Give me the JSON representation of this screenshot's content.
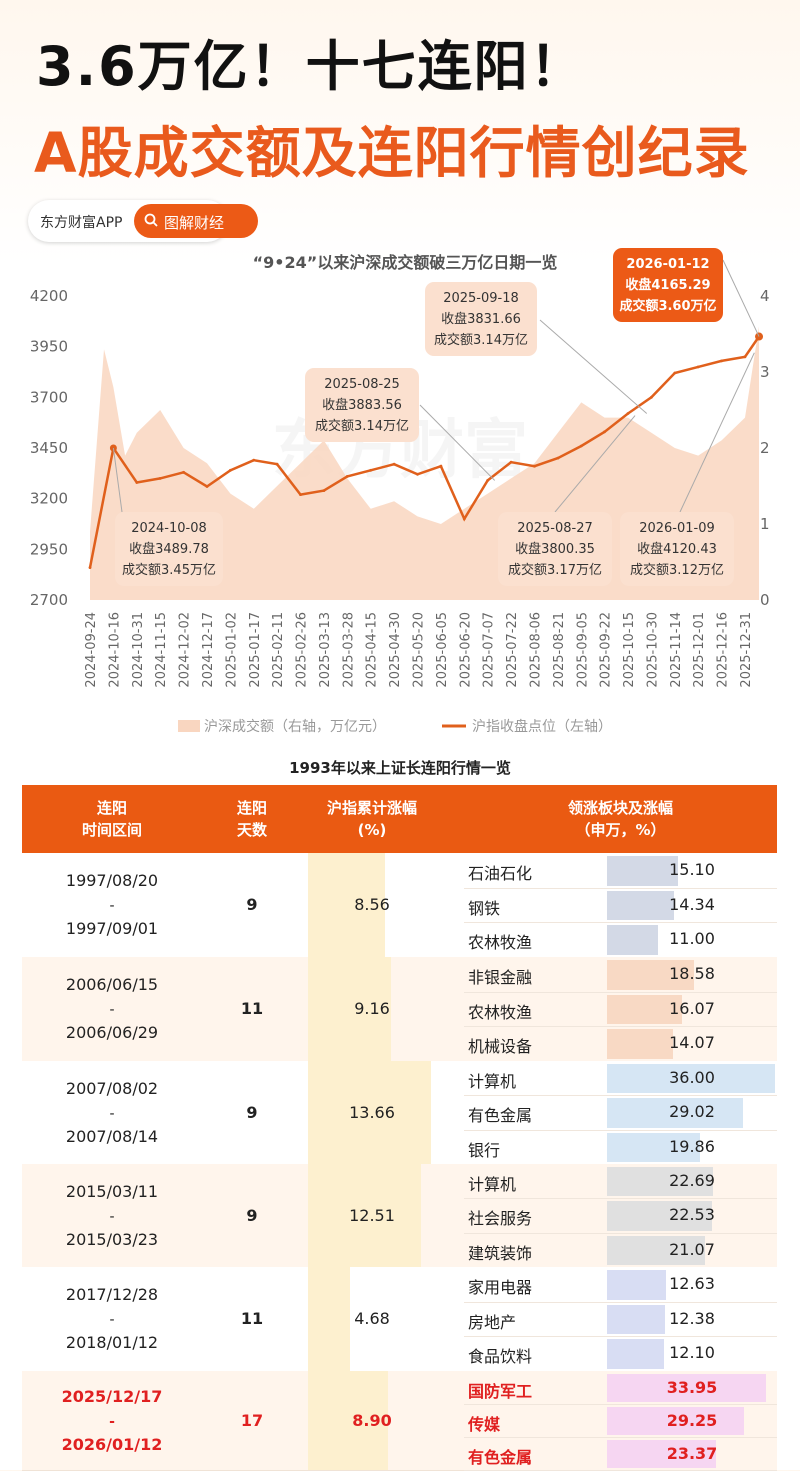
{
  "headline": "3.6万亿！十七连阳！",
  "subheadline": "A股成交额及连阳行情创纪录",
  "brand": {
    "app": "东方财富APP",
    "tag": "图解财经"
  },
  "watermark": "东方财富",
  "colors": {
    "accent": "#ec5a16",
    "area": "#f9d6c0",
    "line": "#e0601c"
  },
  "chart_data": {
    "type": "line",
    "title": "“9•24”以来沪深成交额破三万亿日期一览",
    "x_ticks": [
      "2024-09-24",
      "2024-10-16",
      "2024-10-31",
      "2024-11-15",
      "2024-12-02",
      "2024-12-17",
      "2025-01-02",
      "2025-01-17",
      "2025-02-11",
      "2025-02-26",
      "2025-03-13",
      "2025-03-28",
      "2025-04-15",
      "2025-04-30",
      "2025-05-20",
      "2025-06-05",
      "2025-06-20",
      "2025-07-07",
      "2025-07-22",
      "2025-08-06",
      "2025-08-21",
      "2025-09-05",
      "2025-09-22",
      "2025-10-15",
      "2025-10-30",
      "2025-11-14",
      "2025-12-01",
      "2025-12-16",
      "2025-12-31"
    ],
    "y_left_ticks": [
      "4200",
      "3950",
      "3700",
      "3450",
      "3200",
      "2950",
      "2700"
    ],
    "y_left_range": [
      2700,
      4200
    ],
    "y_right_ticks": [
      "4",
      "3",
      "2",
      "1",
      "0"
    ],
    "y_right_range": [
      0,
      4
    ],
    "legend": {
      "area": "沪深成交额（右轴，万亿元）",
      "line": "沪指收盘点位（左轴）"
    },
    "series": [
      {
        "name": "沪指收盘点位（左轴）",
        "axis": "left",
        "x": [
          0,
          1,
          2,
          3,
          4,
          5,
          6,
          7,
          8,
          9,
          10,
          11,
          12,
          13,
          14,
          15,
          16,
          17,
          18,
          19,
          20,
          21,
          22,
          23,
          24,
          25,
          26,
          27,
          28,
          28.6
        ],
        "values": [
          2860,
          3450,
          3280,
          3300,
          3330,
          3260,
          3340,
          3390,
          3370,
          3220,
          3240,
          3310,
          3340,
          3370,
          3320,
          3360,
          3100,
          3290,
          3380,
          3360,
          3400,
          3460,
          3530,
          3620,
          3700,
          3820,
          3850,
          3880,
          3900,
          4000
        ]
      },
      {
        "name": "沪深成交额（右轴，万亿元）",
        "axis": "right",
        "x": [
          0,
          0.6,
          1,
          1.5,
          2,
          3,
          4,
          5,
          6,
          7,
          8,
          9,
          10,
          11,
          12,
          13,
          14,
          15,
          16,
          17,
          18,
          19,
          20,
          21,
          22,
          23,
          24,
          25,
          26,
          27,
          28,
          28.6
        ],
        "values": [
          0.9,
          3.3,
          2.8,
          1.9,
          2.2,
          2.5,
          2.0,
          1.8,
          1.4,
          1.2,
          1.5,
          1.8,
          2.1,
          1.6,
          1.2,
          1.3,
          1.1,
          1.0,
          1.2,
          1.4,
          1.6,
          1.8,
          2.2,
          2.6,
          2.4,
          2.4,
          2.2,
          2.0,
          1.9,
          2.1,
          2.4,
          3.6
        ]
      }
    ],
    "annotations": [
      {
        "date": "2024-10-08",
        "close": "收盘3489.78",
        "volume": "成交额3.45万亿"
      },
      {
        "date": "2025-08-25",
        "close": "收盘3883.56",
        "volume": "成交额3.14万亿"
      },
      {
        "date": "2025-09-18",
        "close": "收盘3831.66",
        "volume": "成交额3.14万亿"
      },
      {
        "date": "2025-08-27",
        "close": "收盘3800.35",
        "volume": "成交额3.17万亿"
      },
      {
        "date": "2026-01-09",
        "close": "收盘4120.43",
        "volume": "成交额3.12万亿"
      },
      {
        "date": "2026-01-12",
        "close": "收盘4165.29",
        "volume": "成交额3.60万亿"
      }
    ]
  },
  "table": {
    "title": "1993年以来上证长连阳行情一览",
    "headers": {
      "period": [
        "连阳",
        "时间区间"
      ],
      "days": [
        "连阳",
        "天数"
      ],
      "gain": [
        "沪指累计涨幅",
        "(%)"
      ],
      "sector": [
        "领涨板块及涨幅",
        "（申万，%）"
      ]
    },
    "rows": [
      {
        "start": "1997/08/20",
        "sep": "-",
        "end": "1997/09/01",
        "days": "9",
        "gain": "8.56",
        "gain_value": 8.56,
        "sectors": [
          {
            "name": "石油石化",
            "value": "15.10",
            "v": 15.1
          },
          {
            "name": "钢铁",
            "value": "14.34",
            "v": 14.34
          },
          {
            "name": "农林牧渔",
            "value": "11.00",
            "v": 11.0
          }
        ]
      },
      {
        "start": "2006/06/15",
        "sep": "-",
        "end": "2006/06/29",
        "days": "11",
        "gain": "9.16",
        "gain_value": 9.16,
        "sectors": [
          {
            "name": "非银金融",
            "value": "18.58",
            "v": 18.58
          },
          {
            "name": "农林牧渔",
            "value": "16.07",
            "v": 16.07
          },
          {
            "name": "机械设备",
            "value": "14.07",
            "v": 14.07
          }
        ]
      },
      {
        "start": "2007/08/02",
        "sep": "-",
        "end": "2007/08/14",
        "days": "9",
        "gain": "13.66",
        "gain_value": 13.66,
        "sectors": [
          {
            "name": "计算机",
            "value": "36.00",
            "v": 36.0
          },
          {
            "name": "有色金属",
            "value": "29.02",
            "v": 29.02
          },
          {
            "name": "银行",
            "value": "19.86",
            "v": 19.86
          }
        ]
      },
      {
        "start": "2015/03/11",
        "sep": "-",
        "end": "2015/03/23",
        "days": "9",
        "gain": "12.51",
        "gain_value": 12.51,
        "sectors": [
          {
            "name": "计算机",
            "value": "22.69",
            "v": 22.69
          },
          {
            "name": "社会服务",
            "value": "22.53",
            "v": 22.53
          },
          {
            "name": "建筑装饰",
            "value": "21.07",
            "v": 21.07
          }
        ]
      },
      {
        "start": "2017/12/28",
        "sep": "-",
        "end": "2018/01/12",
        "days": "11",
        "gain": "4.68",
        "gain_value": 4.68,
        "sectors": [
          {
            "name": "家用电器",
            "value": "12.63",
            "v": 12.63
          },
          {
            "name": "房地产",
            "value": "12.38",
            "v": 12.38
          },
          {
            "name": "食品饮料",
            "value": "12.10",
            "v": 12.1
          }
        ]
      },
      {
        "start": "2025/12/17",
        "sep": "-",
        "end": "2026/01/12",
        "days": "17",
        "gain": "8.90",
        "gain_value": 8.9,
        "sectors": [
          {
            "name": "国防军工",
            "value": "33.95",
            "v": 33.95
          },
          {
            "name": "传媒",
            "value": "29.25",
            "v": 29.25
          },
          {
            "name": "有色金属",
            "value": "23.37",
            "v": 23.37
          }
        ]
      }
    ]
  }
}
